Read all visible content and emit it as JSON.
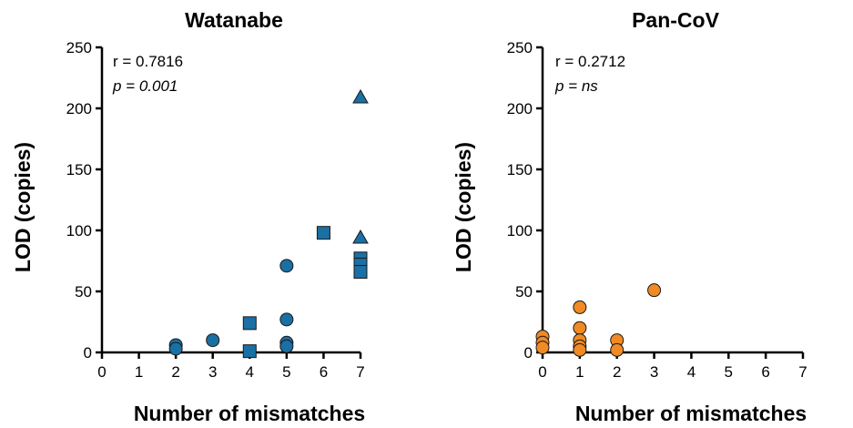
{
  "chart_data": [
    {
      "type": "scatter",
      "title": "Watanabe",
      "xlabel": "Number of mismatches",
      "ylabel": "LOD (copies)",
      "xlim": [
        0,
        7
      ],
      "ylim": [
        0,
        250
      ],
      "xticks": [
        "0",
        "1",
        "2",
        "3",
        "4",
        "5",
        "6",
        "7"
      ],
      "yticks": [
        "0",
        "50",
        "100",
        "150",
        "200",
        "250"
      ],
      "grid": false,
      "color": "#1a6fa3",
      "annotations": {
        "r": "r = 0.7816",
        "p": "p = 0.001"
      },
      "series": [
        {
          "marker": "circle",
          "points": [
            {
              "x": 2,
              "y": 6
            },
            {
              "x": 2,
              "y": 3
            },
            {
              "x": 3,
              "y": 10
            },
            {
              "x": 5,
              "y": 71
            },
            {
              "x": 5,
              "y": 27
            },
            {
              "x": 5,
              "y": 8
            },
            {
              "x": 5,
              "y": 5
            }
          ]
        },
        {
          "marker": "square",
          "points": [
            {
              "x": 4,
              "y": 24
            },
            {
              "x": 4,
              "y": 1
            },
            {
              "x": 6,
              "y": 98
            },
            {
              "x": 7,
              "y": 77
            },
            {
              "x": 7,
              "y": 72
            },
            {
              "x": 7,
              "y": 66
            }
          ]
        },
        {
          "marker": "triangle",
          "points": [
            {
              "x": 7,
              "y": 209
            },
            {
              "x": 7,
              "y": 94
            }
          ]
        }
      ]
    },
    {
      "type": "scatter",
      "title": "Pan-CoV",
      "xlabel": "Number of mismatches",
      "ylabel": "LOD (copies)",
      "xlim": [
        0,
        7
      ],
      "ylim": [
        0,
        250
      ],
      "xticks": [
        "0",
        "1",
        "2",
        "3",
        "4",
        "5",
        "6",
        "7"
      ],
      "yticks": [
        "0",
        "50",
        "100",
        "150",
        "200",
        "250"
      ],
      "grid": false,
      "color": "#f08a24",
      "annotations": {
        "r": "r = 0.2712",
        "p": "p = ns"
      },
      "series": [
        {
          "marker": "circle",
          "points": [
            {
              "x": 0,
              "y": 13
            },
            {
              "x": 0,
              "y": 8
            },
            {
              "x": 0,
              "y": 4
            },
            {
              "x": 1,
              "y": 37
            },
            {
              "x": 1,
              "y": 20
            },
            {
              "x": 1,
              "y": 10
            },
            {
              "x": 1,
              "y": 5
            },
            {
              "x": 1,
              "y": 2
            },
            {
              "x": 2,
              "y": 10
            },
            {
              "x": 2,
              "y": 2
            },
            {
              "x": 3,
              "y": 51
            }
          ]
        }
      ]
    }
  ]
}
